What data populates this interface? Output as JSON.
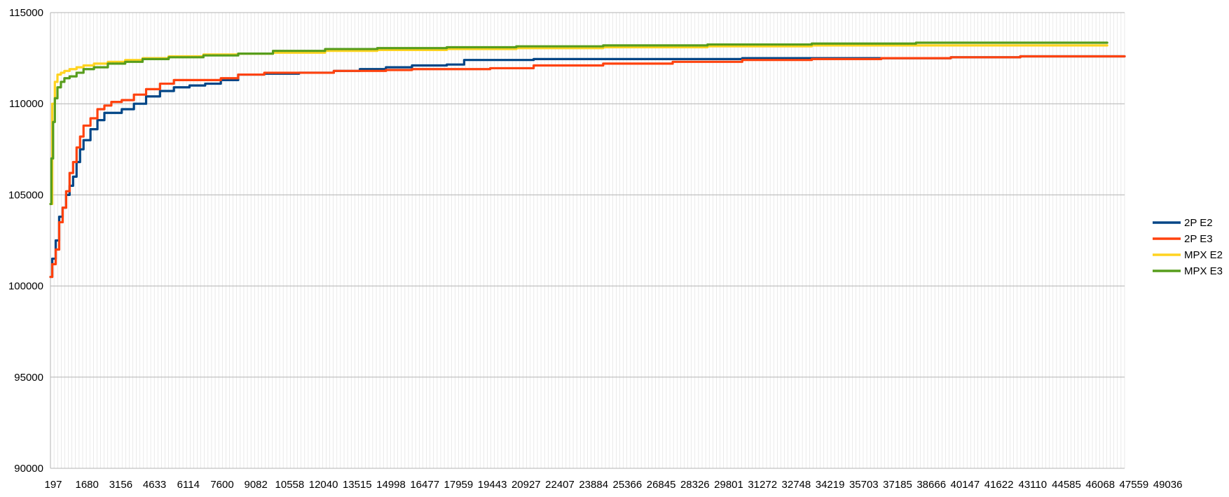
{
  "chart_data": {
    "type": "line",
    "title": "",
    "xlabel": "",
    "ylabel": "",
    "ylim": [
      90000,
      115000
    ],
    "yticks": [
      90000,
      95000,
      100000,
      105000,
      110000,
      115000
    ],
    "xlim": [
      197,
      62000
    ],
    "xticks": [
      "197",
      "1680",
      "3156",
      "4633",
      "6114",
      "7600",
      "9082",
      "10558",
      "12040",
      "13515",
      "14998",
      "16477",
      "17959",
      "19443",
      "20927",
      "22407",
      "23884",
      "25366",
      "26845",
      "28326",
      "29801",
      "31272",
      "32748",
      "34219",
      "35703",
      "37185",
      "38666",
      "40147",
      "41622",
      "43110",
      "44585",
      "46068",
      "47559",
      "49036"
    ],
    "grid": true,
    "legend_position": "right",
    "series": [
      {
        "name": "2P E2",
        "color": "#004586",
        "x": [
          197,
          300,
          500,
          700,
          900,
          1100,
          1300,
          1500,
          1700,
          1900,
          2100,
          2500,
          2900,
          3300,
          3700,
          4300,
          5000,
          5700,
          6500,
          7300,
          8200,
          9100,
          10000,
          11000,
          12500,
          14500,
          16500,
          18000,
          19500,
          21000,
          23000,
          24000,
          25500,
          28000,
          32000,
          36000,
          40000,
          44000,
          48000,
          52000,
          56000,
          62000
        ],
        "values": [
          100500,
          101500,
          102500,
          103800,
          104300,
          105000,
          105500,
          106000,
          106800,
          107500,
          108000,
          108600,
          109100,
          109500,
          109500,
          109700,
          110000,
          110400,
          110700,
          110900,
          111000,
          111100,
          111300,
          111600,
          111650,
          111700,
          111800,
          111900,
          112000,
          112100,
          112150,
          112400,
          112400,
          112450,
          112450,
          112450,
          112500,
          112500,
          112500,
          112550,
          112600,
          112600
        ]
      },
      {
        "name": "2P E3",
        "color": "#ff420e",
        "x": [
          197,
          300,
          500,
          700,
          900,
          1100,
          1300,
          1500,
          1700,
          1900,
          2100,
          2500,
          2900,
          3300,
          3700,
          4300,
          5000,
          5700,
          6500,
          7300,
          8200,
          9100,
          10000,
          11000,
          12500,
          14500,
          16500,
          18000,
          19500,
          21000,
          23000,
          24000,
          25500,
          28000,
          32000,
          36000,
          40000,
          44000,
          48000,
          52000,
          56000,
          62000
        ],
        "values": [
          100500,
          101200,
          102000,
          103500,
          104300,
          105200,
          106200,
          106800,
          107600,
          108200,
          108800,
          109200,
          109700,
          109900,
          110100,
          110200,
          110500,
          110800,
          111100,
          111300,
          111300,
          111300,
          111400,
          111600,
          111700,
          111700,
          111800,
          111800,
          111850,
          111900,
          111900,
          111900,
          111950,
          112100,
          112200,
          112300,
          112400,
          112450,
          112500,
          112550,
          112600,
          112600
        ]
      },
      {
        "name": "MPX E2",
        "color": "#ffd320",
        "x": [
          197,
          300,
          450,
          600,
          800,
          1000,
          1300,
          1700,
          2100,
          2700,
          3500,
          4500,
          5500,
          7000,
          9000,
          11000,
          13000,
          16000,
          19000,
          23000,
          27000,
          32000,
          38000,
          44000,
          50000,
          56000,
          61000
        ],
        "values": [
          104500,
          110000,
          111200,
          111600,
          111700,
          111800,
          111900,
          112000,
          112100,
          112200,
          112300,
          112400,
          112500,
          112600,
          112700,
          112750,
          112800,
          112900,
          112950,
          113000,
          113050,
          113100,
          113150,
          113200,
          113200,
          113200,
          113200
        ]
      },
      {
        "name": "MPX E3",
        "color": "#579d1c",
        "x": [
          197,
          250,
          350,
          450,
          600,
          800,
          1000,
          1300,
          1700,
          2100,
          2700,
          3500,
          4500,
          5500,
          7000,
          9000,
          11000,
          13000,
          16000,
          19000,
          23000,
          27000,
          32000,
          38000,
          44000,
          50000,
          56000,
          61000
        ],
        "values": [
          104500,
          107000,
          109000,
          110300,
          110900,
          111200,
          111400,
          111500,
          111700,
          111900,
          112000,
          112200,
          112300,
          112450,
          112550,
          112650,
          112750,
          112900,
          113000,
          113050,
          113100,
          113150,
          113200,
          113250,
          113300,
          113350,
          113350,
          113350
        ]
      }
    ]
  }
}
